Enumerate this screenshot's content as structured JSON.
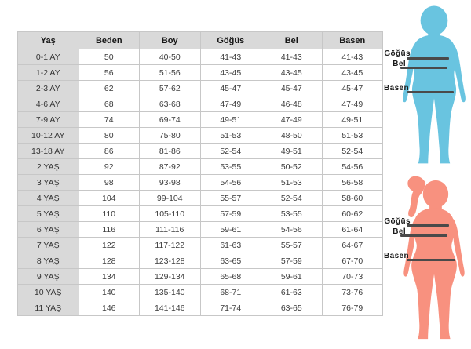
{
  "table": {
    "headers": [
      "Yaş",
      "Beden",
      "Boy",
      "Göğüs",
      "Bel",
      "Basen"
    ],
    "rows": [
      [
        "0-1 AY",
        "50",
        "40-50",
        "41-43",
        "41-43",
        "41-43"
      ],
      [
        "1-2 AY",
        "56",
        "51-56",
        "43-45",
        "43-45",
        "43-45"
      ],
      [
        "2-3 AY",
        "62",
        "57-62",
        "45-47",
        "45-47",
        "45-47"
      ],
      [
        "4-6 AY",
        "68",
        "63-68",
        "47-49",
        "46-48",
        "47-49"
      ],
      [
        "7-9 AY",
        "74",
        "69-74",
        "49-51",
        "47-49",
        "49-51"
      ],
      [
        "10-12 AY",
        "80",
        "75-80",
        "51-53",
        "48-50",
        "51-53"
      ],
      [
        "13-18 AY",
        "86",
        "81-86",
        "52-54",
        "49-51",
        "52-54"
      ],
      [
        "2 YAŞ",
        "92",
        "87-92",
        "53-55",
        "50-52",
        "54-56"
      ],
      [
        "3 YAŞ",
        "98",
        "93-98",
        "54-56",
        "51-53",
        "56-58"
      ],
      [
        "4 YAŞ",
        "104",
        "99-104",
        "55-57",
        "52-54",
        "58-60"
      ],
      [
        "5 YAŞ",
        "110",
        "105-110",
        "57-59",
        "53-55",
        "60-62"
      ],
      [
        "6 YAŞ",
        "116",
        "111-116",
        "59-61",
        "54-56",
        "61-64"
      ],
      [
        "7 YAŞ",
        "122",
        "117-122",
        "61-63",
        "55-57",
        "64-67"
      ],
      [
        "8 YAŞ",
        "128",
        "123-128",
        "63-65",
        "57-59",
        "67-70"
      ],
      [
        "9 YAŞ",
        "134",
        "129-134",
        "65-68",
        "59-61",
        "70-73"
      ],
      [
        "10 YAŞ",
        "140",
        "135-140",
        "68-71",
        "61-63",
        "73-76"
      ],
      [
        "11 YAŞ",
        "146",
        "141-146",
        "71-74",
        "63-65",
        "76-79"
      ]
    ]
  },
  "figures": {
    "boy": {
      "labels": {
        "chest": "Göğüs",
        "waist": "Bel",
        "hip": "Basen"
      }
    },
    "girl": {
      "labels": {
        "chest": "Göğüs",
        "waist": "Bel",
        "hip": "Basen"
      }
    }
  },
  "colors": {
    "boy": "#69c4e0",
    "girl": "#f8917f",
    "line": "#4a4a4a",
    "cell-gray": "#d9d9d9",
    "border": "#c7c7c7"
  }
}
